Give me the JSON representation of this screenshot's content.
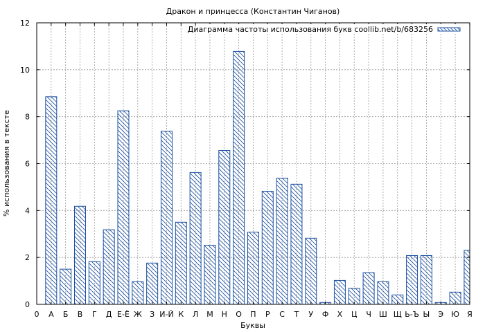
{
  "chart_data": {
    "type": "bar",
    "title": "Дракон и принцесса (Константин Чиганов)",
    "xlabel": "Буквы",
    "ylabel": "% использования в тексте",
    "legend_label": "Диаграмма частоты использования букв coollib.net/b/683256",
    "legend_position": "top-right",
    "grid": true,
    "ylim": [
      0,
      12
    ],
    "yticks": [
      "0",
      "2",
      "4",
      "6",
      "8",
      "10",
      "12"
    ],
    "x_origin_label": "0",
    "categories": [
      "А",
      "Б",
      "В",
      "Г",
      "Д",
      "Е-Ё",
      "Ж",
      "З",
      "И-Й",
      "К",
      "Л",
      "М",
      "Н",
      "О",
      "П",
      "Р",
      "С",
      "Т",
      "У",
      "Ф",
      "Х",
      "Ц",
      "Ч",
      "Ш",
      "Щ",
      "Ь-Ъ",
      "Ы",
      "Э",
      "Ю",
      "Я"
    ],
    "values": [
      8.85,
      1.5,
      4.18,
      1.82,
      3.18,
      8.25,
      0.97,
      1.76,
      7.38,
      3.5,
      5.62,
      2.52,
      6.56,
      10.78,
      3.08,
      4.82,
      5.38,
      5.12,
      2.82,
      0.08,
      1.02,
      0.68,
      1.35,
      0.97,
      0.4,
      2.08,
      2.08,
      0.08,
      0.52,
      2.3
    ],
    "bar_color": "#1a4fa0"
  }
}
